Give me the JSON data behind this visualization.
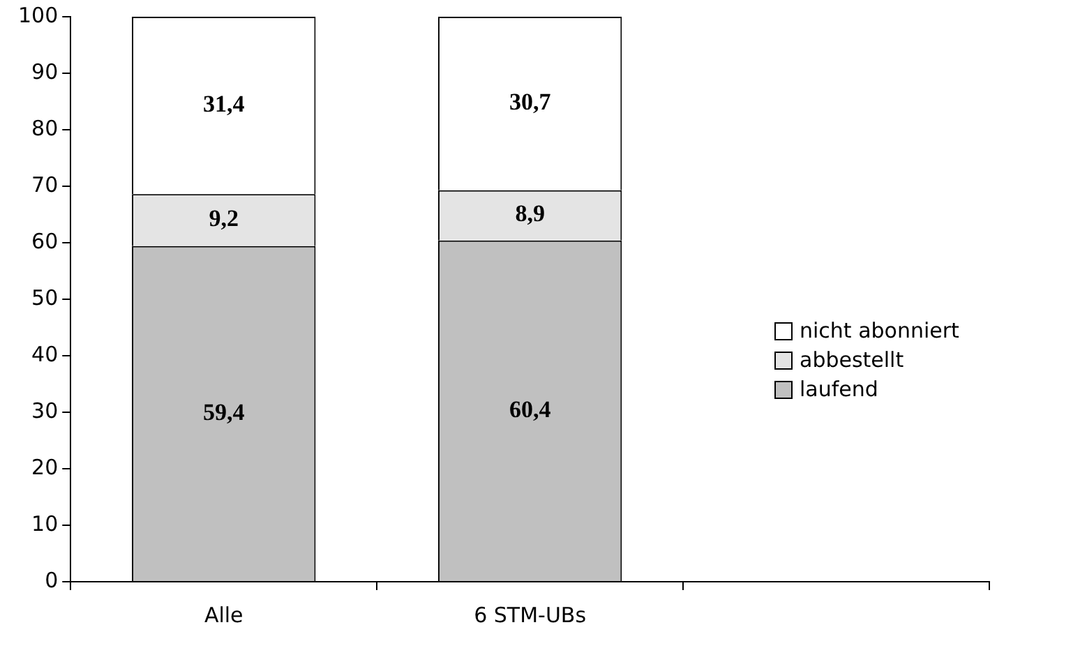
{
  "chart_data": {
    "type": "bar",
    "stacked": true,
    "categories": [
      "Alle",
      "6 STM-UBs",
      null
    ],
    "series": [
      {
        "name": "laufend",
        "color": "#c0c0c0",
        "values": [
          59.4,
          60.4,
          null
        ],
        "value_labels": [
          "59,4",
          "60,4",
          null
        ]
      },
      {
        "name": "abbestellt",
        "color": "#e4e4e4",
        "values": [
          9.2,
          8.9,
          null
        ],
        "value_labels": [
          "9,2",
          "8,9",
          null
        ]
      },
      {
        "name": "nicht abonniert",
        "color": "#ffffff",
        "values": [
          31.4,
          30.7,
          null
        ],
        "value_labels": [
          "31,4",
          "30,7",
          null
        ]
      }
    ],
    "ylim": [
      0,
      100
    ],
    "yticks": [
      0,
      10,
      20,
      30,
      40,
      50,
      60,
      70,
      80,
      90,
      100
    ],
    "grid": false,
    "legend": "right"
  }
}
